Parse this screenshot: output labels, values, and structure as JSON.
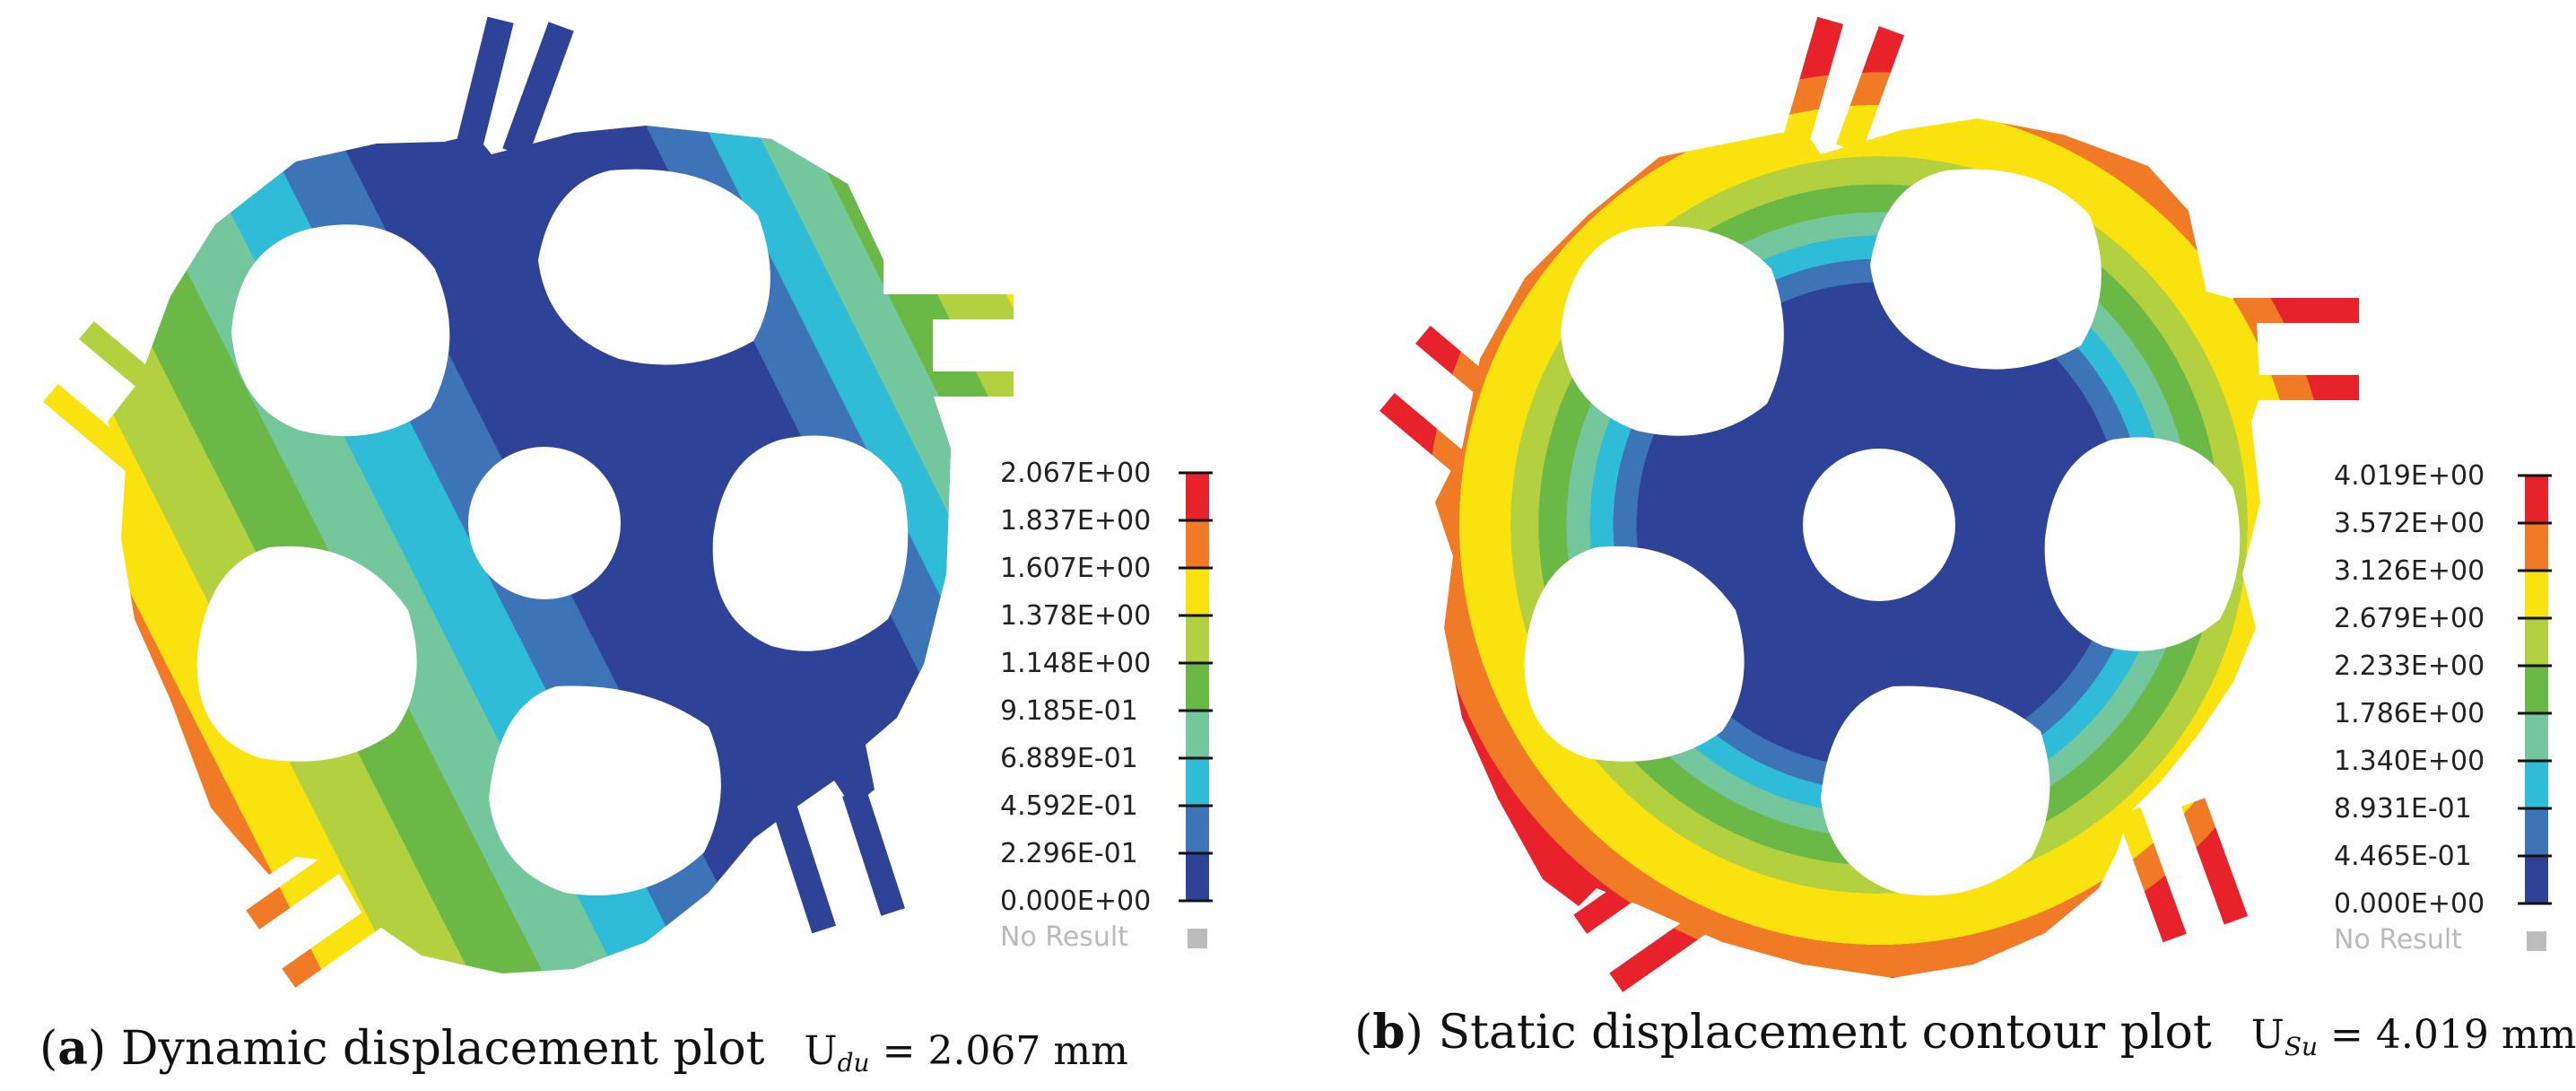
{
  "panels": [
    {
      "id": "a",
      "caption_letter": "a",
      "caption_text": "Dynamic displacement plot",
      "symbol_letter": "U",
      "symbol_sub": "du",
      "symbol_value": "= 2.067 mm",
      "legend": {
        "max_value": 2.067,
        "labels": [
          "2.067E+00",
          "1.837E+00",
          "1.607E+00",
          "1.378E+00",
          "1.148E+00",
          "9.185E-01",
          "6.889E-01",
          "4.592E-01",
          "2.296E-01",
          "0.000E+00"
        ],
        "no_result": "No Result"
      }
    },
    {
      "id": "b",
      "caption_letter": "b",
      "caption_text": "Static displacement contour plot",
      "symbol_letter": "U",
      "symbol_sub": "Su",
      "symbol_value": "= 4.019 mm",
      "legend": {
        "max_value": 4.019,
        "labels": [
          "4.019E+00",
          "3.572E+00",
          "3.126E+00",
          "2.679E+00",
          "2.233E+00",
          "1.786E+00",
          "1.340E+00",
          "8.931E-01",
          "4.465E-01",
          "0.000E+00"
        ],
        "no_result": "No Result"
      }
    }
  ],
  "colors": {
    "band_scale_high_to_low": [
      "#e8222b",
      "#f07a26",
      "#fae20f",
      "#b3d03e",
      "#6ab947",
      "#74c69d",
      "#2fbcd8",
      "#3d74b8",
      "#2e4297"
    ],
    "no_result_swatch": "#bcbcbc",
    "hole": "#ffffff"
  }
}
